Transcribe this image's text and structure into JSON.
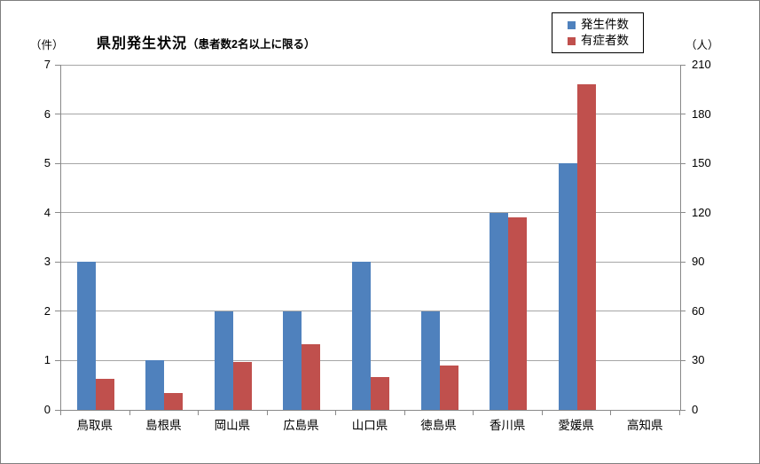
{
  "chart_data": {
    "type": "bar",
    "title": "県別発生状況",
    "subtitle": "（患者数2名以上に限る）",
    "categories": [
      "鳥取県",
      "島根県",
      "岡山県",
      "広島県",
      "山口県",
      "徳島県",
      "香川県",
      "愛媛県",
      "高知県"
    ],
    "series": [
      {
        "name": "発生件数",
        "axis": "left",
        "color": "#4F81BD",
        "values": [
          3,
          1,
          2,
          2,
          3,
          2,
          4,
          5,
          0
        ]
      },
      {
        "name": "有症者数",
        "axis": "right",
        "color": "#C0504D",
        "values": [
          19,
          10,
          29,
          40,
          20,
          27,
          117,
          198,
          0
        ]
      }
    ],
    "left_axis": {
      "unit_label": "（件）",
      "min": 0,
      "max": 7,
      "step": 1,
      "ticks": [
        0,
        1,
        2,
        3,
        4,
        5,
        6,
        7
      ]
    },
    "right_axis": {
      "unit_label": "（人）",
      "min": 0,
      "max": 210,
      "step": 30,
      "ticks": [
        0,
        30,
        60,
        90,
        120,
        150,
        180,
        210
      ]
    },
    "legend_position": "top-right",
    "grid": true,
    "grid_color": "#A6A6A6",
    "axis_color": "#898989"
  }
}
